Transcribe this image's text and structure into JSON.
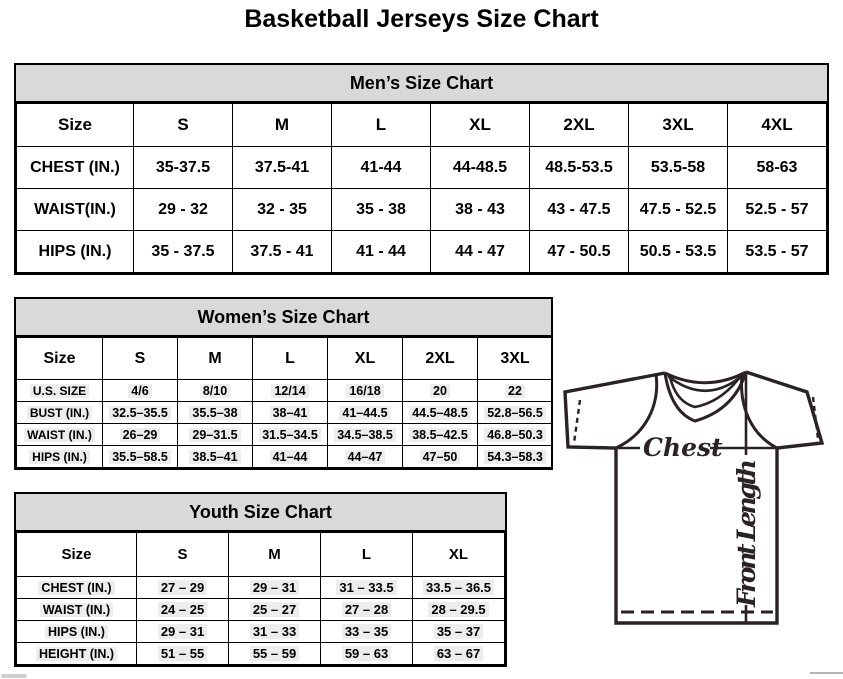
{
  "title": "Basketball Jerseys Size Chart",
  "tables": {
    "men": {
      "title": "Men’s Size Chart",
      "header": [
        "Size",
        "S",
        "M",
        "L",
        "XL",
        "2XL",
        "3XL",
        "4XL"
      ],
      "rows": [
        {
          "label": "CHEST (IN.)",
          "values": [
            "35-37.5",
            "37.5-41",
            "41-44",
            "44-48.5",
            "48.5-53.5",
            "53.5-58",
            "58-63"
          ]
        },
        {
          "label": "WAIST(IN.)",
          "values": [
            "29 - 32",
            "32 - 35",
            "35 - 38",
            "38 - 43",
            "43 - 47.5",
            "47.5 - 52.5",
            "52.5 - 57"
          ]
        },
        {
          "label": "HIPS (IN.)",
          "values": [
            "35 - 37.5",
            "37.5 - 41",
            "41 - 44",
            "44 - 47",
            "47 - 50.5",
            "50.5 - 53.5",
            "53.5 - 57"
          ]
        }
      ]
    },
    "women": {
      "title": "Women’s Size Chart",
      "header": [
        "Size",
        "S",
        "M",
        "L",
        "XL",
        "2XL",
        "3XL"
      ],
      "rows": [
        {
          "label": "U.S. SIZE",
          "values": [
            "4/6",
            "8/10",
            "12/14",
            "16/18",
            "20",
            "22"
          ]
        },
        {
          "label": "BUST (IN.)",
          "values": [
            "32.5–35.5",
            "35.5–38",
            "38–41",
            "41–44.5",
            "44.5–48.5",
            "52.8–56.5"
          ]
        },
        {
          "label": "WAIST (IN.)",
          "values": [
            "26–29",
            "29–31.5",
            "31.5–34.5",
            "34.5–38.5",
            "38.5–42.5",
            "46.8–50.3"
          ]
        },
        {
          "label": "HIPS (IN.)",
          "values": [
            "35.5–58.5",
            "38.5–41",
            "41–44",
            "44–47",
            "47–50",
            "54.3–58.3"
          ]
        }
      ]
    },
    "youth": {
      "title": "Youth Size Chart",
      "header": [
        "Size",
        "S",
        "M",
        "L",
        "XL"
      ],
      "rows": [
        {
          "label": "CHEST (IN.)",
          "values": [
            "27 – 29",
            "29 – 31",
            "31 – 33.5",
            "33.5 – 36.5"
          ]
        },
        {
          "label": "WAIST (IN.)",
          "values": [
            "24 – 25",
            "25 – 27",
            "27 – 28",
            "28 – 29.5"
          ]
        },
        {
          "label": "HIPS (IN.)",
          "values": [
            "29 – 31",
            "31 – 33",
            "33 – 35",
            "35 – 37"
          ]
        },
        {
          "label": "HEIGHT (IN.)",
          "values": [
            "51 – 55",
            "55 – 59",
            "59 – 63",
            "63 – 67"
          ]
        }
      ]
    }
  },
  "diagram": {
    "chest_label": "Chest",
    "front_length_label": "Front Length"
  },
  "colors": {
    "header_bg": "#d9d9d9",
    "highlight_bg": "#ededed",
    "border": "#000000",
    "jersey_line": "#2b2226"
  }
}
